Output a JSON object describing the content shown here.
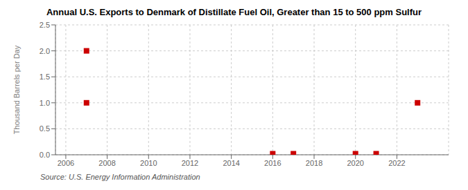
{
  "chart_data": {
    "type": "scatter",
    "title": "Annual U.S. Exports to Denmark of Distillate Fuel Oil, Greater than 15 to 500 ppm Sulfur",
    "y_label": "Thousand Barrels per Day",
    "annotation": "Source: U.S. Energy Information Administration",
    "x": [
      2007,
      2007,
      2016,
      2017,
      2020,
      2021,
      2023
    ],
    "values": [
      2.0,
      1.0,
      0.02,
      0.02,
      0.02,
      0.02,
      1.0
    ],
    "color": "#cc0000",
    "marker": "square",
    "xlim": [
      2005.5,
      2024.5
    ],
    "xticks": [
      2006,
      2008,
      2010,
      2012,
      2014,
      2016,
      2018,
      2020,
      2022
    ],
    "ylim": [
      0.0,
      2.5
    ],
    "yticks": [
      {
        "value": 0.0,
        "label": "0.0"
      },
      0.5,
      {
        "value": 1.0,
        "label": "1.0"
      },
      1.5,
      {
        "value": 2.0,
        "label": "2.0"
      },
      2.5
    ],
    "grid": true
  }
}
